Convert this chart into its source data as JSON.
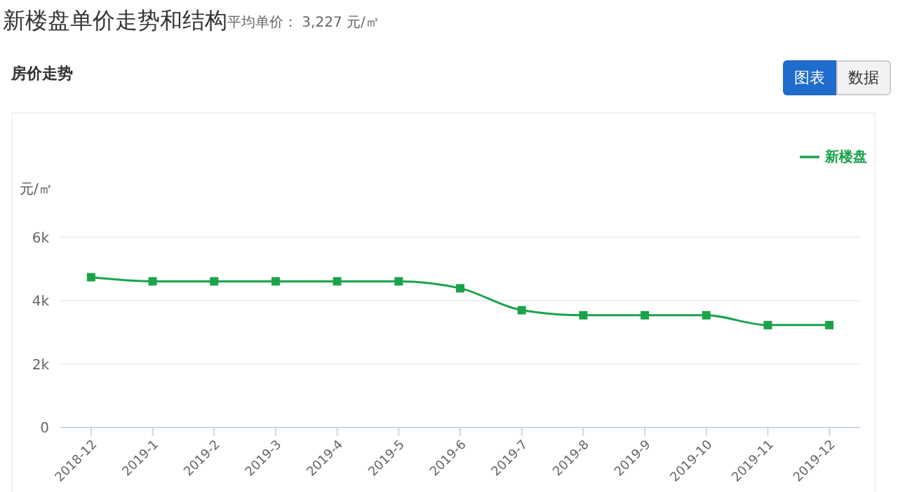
{
  "chart_data": {
    "type": "line",
    "title": "新楼盘单价走势和结构",
    "subtitle": "平均单价： 3,227 元/㎡",
    "ylabel": "元/㎡",
    "annotations": [
      "房价走势",
      "图表",
      "数据"
    ],
    "categories": [
      "2018-12",
      "2019-1",
      "2019-2",
      "2019-3",
      "2019-4",
      "2019-5",
      "2019-6",
      "2019-7",
      "2019-8",
      "2019-9",
      "2019-10",
      "2019-11",
      "2019-12"
    ],
    "series": [
      {
        "name": "新楼盘",
        "color": "#1aa34a",
        "values": [
          4740,
          4610,
          4610,
          4610,
          4610,
          4610,
          4390,
          3700,
          3540,
          3540,
          3540,
          3230,
          3230
        ]
      }
    ],
    "ylim": [
      0,
      6000
    ],
    "yticks": [
      0,
      {
        "value": 2000,
        "label": "2k"
      },
      {
        "value": 4000,
        "label": "4k"
      },
      {
        "value": 6000,
        "label": "6k"
      }
    ],
    "grid": "y",
    "legend": "top right",
    "marker": "square",
    "line_style": "solid"
  }
}
